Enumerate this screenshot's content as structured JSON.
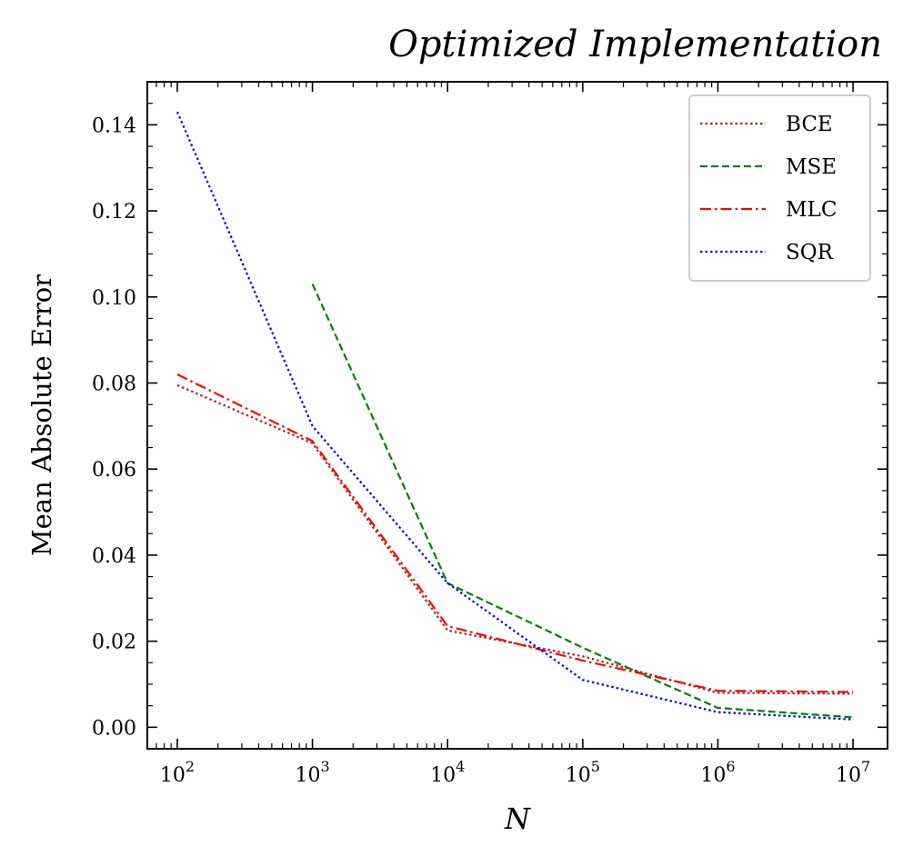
{
  "chart_data": {
    "type": "line",
    "title": "Optimized Implementation",
    "xlabel": "N",
    "ylabel": "Mean Absolute Error",
    "xscale": "log",
    "x": [
      100,
      1000,
      10000,
      100000,
      1000000,
      10000000
    ],
    "xlim": [
      60,
      18000000
    ],
    "ylim": [
      -0.005,
      0.15
    ],
    "x_tick_labels": [
      {
        "base": "10",
        "exp": "2"
      },
      {
        "base": "10",
        "exp": "3"
      },
      {
        "base": "10",
        "exp": "4"
      },
      {
        "base": "10",
        "exp": "5"
      },
      {
        "base": "10",
        "exp": "6"
      },
      {
        "base": "10",
        "exp": "7"
      }
    ],
    "y_ticks": [
      0.0,
      0.02,
      0.04,
      0.06,
      0.08,
      0.1,
      0.12,
      0.14
    ],
    "y_tick_labels": [
      "0.00",
      "0.02",
      "0.04",
      "0.06",
      "0.08",
      "0.10",
      "0.12",
      "0.14"
    ],
    "grid": false,
    "legend_position": "top-right",
    "series": [
      {
        "name": "BCE",
        "color": "#b22222",
        "dash": "dotted",
        "values": [
          0.0795,
          0.066,
          0.0225,
          0.0165,
          0.008,
          0.0078
        ]
      },
      {
        "name": "MSE",
        "color": "#008000",
        "dash": "dashed",
        "values": [
          null,
          0.103,
          0.0335,
          0.0185,
          0.0045,
          0.0023
        ]
      },
      {
        "name": "MLC",
        "color": "#ff0000",
        "dash": "dashdot",
        "values": [
          0.082,
          0.0665,
          0.0235,
          0.0155,
          0.0085,
          0.0082
        ]
      },
      {
        "name": "SQR",
        "color": "#0000ff",
        "dash": "dotted",
        "values": [
          0.143,
          0.07,
          0.0335,
          0.011,
          0.0035,
          0.0018
        ]
      }
    ]
  }
}
